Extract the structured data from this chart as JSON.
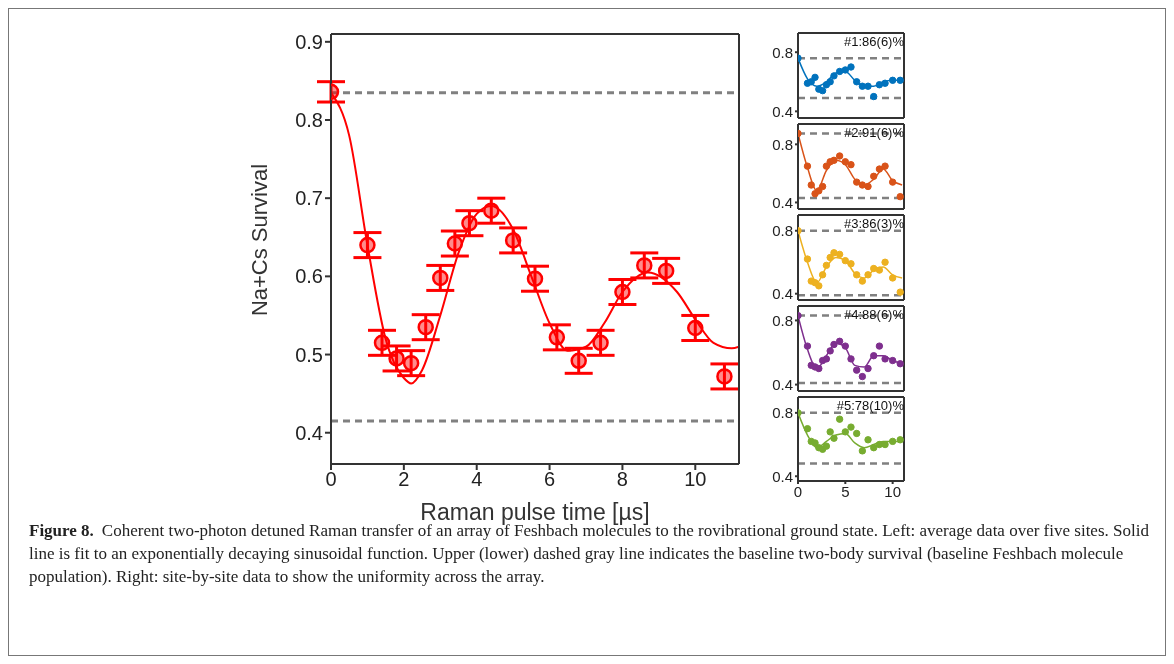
{
  "chart_data": [
    {
      "type": "scatter",
      "xlabel": "Raman pulse time [µs]",
      "ylabel": "Na+Cs Survival",
      "xlim": [
        0,
        11.2
      ],
      "ylim": [
        0.36,
        0.91
      ],
      "xticks": [
        0,
        2,
        4,
        6,
        8,
        10
      ],
      "yticks": [
        0.4,
        0.5,
        0.6,
        0.7,
        0.8,
        0.9
      ],
      "series": [
        {
          "marker": "circle",
          "color": "#ff0000",
          "x": [
            0,
            1,
            1.4,
            1.8,
            2.2,
            2.6,
            3,
            3.4,
            3.8,
            4.4,
            5,
            5.6,
            6.2,
            6.8,
            7.4,
            8,
            8.6,
            9.2,
            10,
            10.8
          ],
          "values": [
            0.836,
            0.64,
            0.515,
            0.495,
            0.489,
            0.535,
            0.598,
            0.642,
            0.668,
            0.684,
            0.646,
            0.597,
            0.522,
            0.492,
            0.515,
            0.58,
            0.614,
            0.607,
            0.534,
            0.472
          ],
          "errors": [
            0.013,
            0.016,
            0.016,
            0.016,
            0.016,
            0.016,
            0.016,
            0.016,
            0.016,
            0.016,
            0.016,
            0.016,
            0.016,
            0.016,
            0.016,
            0.016,
            0.016,
            0.016,
            0.016,
            0.016
          ]
        },
        {
          "type": "line",
          "color": "#ff0000",
          "x": [
            0,
            0.5,
            1,
            1.5,
            2,
            2.2,
            2.5,
            3,
            3.5,
            4,
            4.4,
            5,
            5.5,
            6,
            6.5,
            7,
            7.5,
            8,
            8.7,
            9.5,
            10,
            10.5,
            11,
            11.2
          ],
          "values": [
            0.835,
            0.78,
            0.64,
            0.52,
            0.47,
            0.463,
            0.48,
            0.55,
            0.63,
            0.68,
            0.69,
            0.66,
            0.6,
            0.54,
            0.505,
            0.51,
            0.54,
            0.58,
            0.605,
            0.58,
            0.545,
            0.515,
            0.508,
            0.51
          ]
        }
      ],
      "ref_lines": [
        {
          "axis": "y",
          "value": 0.835,
          "color": "#808080",
          "line_style": "dashed"
        },
        {
          "axis": "y",
          "value": 0.415,
          "color": "#808080",
          "line_style": "dashed"
        }
      ],
      "annotations": [
        "Figure 8.",
        "Coherent two-photon detuned Raman transfer of an array of Feshbach molecules to the rovibrational ground state. Left: average data over five sites. Solid line is fit to an exponentially decaying sinusoidal function. Upper (lower) dashed gray line indicates the baseline two-body survival (baseline Feshbach molecule population). Right: site-by-site data to show the uniformity across the array."
      ]
    },
    {
      "type": "scatter",
      "xlim": [
        0,
        11.2
      ],
      "ylim": [
        0.355,
        0.93
      ],
      "xticks": [
        0,
        5,
        10
      ],
      "yticks": [
        0.4,
        0.8
      ],
      "tick_labels": "y",
      "annotations": [
        "#1:86(6)%"
      ],
      "series": [
        {
          "marker": "circle",
          "color": "#0072bd",
          "x": [
            0,
            1,
            1.4,
            1.8,
            2.2,
            2.6,
            3,
            3.4,
            3.8,
            4.4,
            5,
            5.6,
            6.2,
            6.8,
            7.4,
            8,
            8.6,
            9.2,
            10,
            10.8
          ],
          "values": [
            0.76,
            0.59,
            0.6,
            0.63,
            0.55,
            0.54,
            0.58,
            0.6,
            0.64,
            0.67,
            0.68,
            0.7,
            0.6,
            0.57,
            0.57,
            0.5,
            0.58,
            0.59,
            0.61,
            0.61
          ]
        },
        {
          "type": "line",
          "color": "#0072bd",
          "x": [
            0,
            1,
            2,
            3,
            4,
            5,
            6,
            7,
            8,
            9,
            10,
            11
          ],
          "values": [
            0.76,
            0.62,
            0.57,
            0.6,
            0.66,
            0.67,
            0.61,
            0.57,
            0.57,
            0.6,
            0.61,
            0.61
          ]
        }
      ],
      "ref_lines": [
        {
          "axis": "y",
          "value": 0.76,
          "color": "#808080",
          "line_style": "dashed"
        },
        {
          "axis": "y",
          "value": 0.49,
          "color": "#808080",
          "line_style": "dashed"
        }
      ]
    },
    {
      "type": "scatter",
      "xlim": [
        0,
        11.2
      ],
      "ylim": [
        0.355,
        0.94
      ],
      "xticks": [
        0,
        5,
        10
      ],
      "yticks": [
        0.4,
        0.8
      ],
      "tick_labels": "y",
      "annotations": [
        "#2:91(6)%"
      ],
      "series": [
        {
          "marker": "circle",
          "color": "#d95319",
          "x": [
            0,
            1,
            1.4,
            1.8,
            2.2,
            2.6,
            3,
            3.4,
            3.8,
            4.4,
            5,
            5.6,
            6.2,
            6.8,
            7.4,
            8,
            8.6,
            9.2,
            10,
            10.8
          ],
          "values": [
            0.875,
            0.65,
            0.52,
            0.46,
            0.48,
            0.51,
            0.65,
            0.68,
            0.69,
            0.72,
            0.68,
            0.66,
            0.54,
            0.52,
            0.51,
            0.58,
            0.63,
            0.65,
            0.54,
            0.44
          ]
        },
        {
          "type": "line",
          "color": "#d95319",
          "x": [
            0,
            1,
            2,
            3,
            4,
            5,
            6,
            7,
            8,
            9,
            10,
            11
          ],
          "values": [
            0.875,
            0.64,
            0.48,
            0.62,
            0.69,
            0.66,
            0.56,
            0.52,
            0.56,
            0.63,
            0.55,
            0.52
          ]
        }
      ],
      "ref_lines": [
        {
          "axis": "y",
          "value": 0.875,
          "color": "#808080",
          "line_style": "dashed"
        },
        {
          "axis": "y",
          "value": 0.43,
          "color": "#808080",
          "line_style": "dashed"
        }
      ]
    },
    {
      "type": "scatter",
      "xlim": [
        0,
        11.2
      ],
      "ylim": [
        0.36,
        0.9
      ],
      "xticks": [
        0,
        5,
        10
      ],
      "yticks": [
        0.4,
        0.8
      ],
      "tick_labels": "y",
      "annotations": [
        "#3:86(3)%"
      ],
      "series": [
        {
          "marker": "circle",
          "color": "#edb120",
          "x": [
            0,
            1,
            1.4,
            1.8,
            2.2,
            2.6,
            3,
            3.4,
            3.8,
            4.4,
            5,
            5.6,
            6.2,
            6.8,
            7.4,
            8,
            8.6,
            9.2,
            10,
            10.8
          ],
          "values": [
            0.8,
            0.62,
            0.48,
            0.47,
            0.45,
            0.52,
            0.58,
            0.63,
            0.66,
            0.65,
            0.61,
            0.59,
            0.52,
            0.48,
            0.52,
            0.56,
            0.55,
            0.6,
            0.5,
            0.41
          ]
        },
        {
          "type": "line",
          "color": "#edb120",
          "x": [
            0,
            1,
            2,
            3,
            4,
            5,
            6,
            7,
            8,
            9,
            10,
            11
          ],
          "values": [
            0.8,
            0.6,
            0.47,
            0.57,
            0.63,
            0.61,
            0.53,
            0.5,
            0.55,
            0.57,
            0.52,
            0.5
          ]
        }
      ],
      "ref_lines": [
        {
          "axis": "y",
          "value": 0.8,
          "color": "#808080",
          "line_style": "dashed"
        },
        {
          "axis": "y",
          "value": 0.39,
          "color": "#808080",
          "line_style": "dashed"
        }
      ]
    },
    {
      "type": "scatter",
      "xlim": [
        0,
        11.2
      ],
      "ylim": [
        0.36,
        0.89
      ],
      "xticks": [
        0,
        5,
        10
      ],
      "yticks": [
        0.4,
        0.8
      ],
      "tick_labels": "y",
      "annotations": [
        "#4:88(6)%"
      ],
      "series": [
        {
          "marker": "circle",
          "color": "#7e2f8e",
          "x": [
            0,
            1,
            1.4,
            1.8,
            2.2,
            2.6,
            3,
            3.4,
            3.8,
            4.4,
            5,
            5.6,
            6.2,
            6.8,
            7.4,
            8,
            8.6,
            9.2,
            10,
            10.8
          ],
          "values": [
            0.83,
            0.64,
            0.52,
            0.51,
            0.5,
            0.55,
            0.56,
            0.61,
            0.65,
            0.67,
            0.64,
            0.56,
            0.49,
            0.45,
            0.5,
            0.58,
            0.64,
            0.56,
            0.55,
            0.53
          ]
        },
        {
          "type": "line",
          "color": "#7e2f8e",
          "x": [
            0,
            1,
            2,
            3,
            4,
            5,
            6,
            7,
            8,
            9,
            10,
            11
          ],
          "values": [
            0.83,
            0.62,
            0.5,
            0.58,
            0.66,
            0.63,
            0.52,
            0.51,
            0.58,
            0.58,
            0.55,
            0.53
          ]
        }
      ],
      "ref_lines": [
        {
          "axis": "y",
          "value": 0.83,
          "color": "#808080",
          "line_style": "dashed"
        },
        {
          "axis": "y",
          "value": 0.41,
          "color": "#808080",
          "line_style": "dashed"
        }
      ]
    },
    {
      "type": "scatter",
      "xlim": [
        0,
        11.2
      ],
      "ylim": [
        0.37,
        0.9
      ],
      "xticks": [
        0,
        5,
        10
      ],
      "yticks": [
        0.4,
        0.8
      ],
      "annotations": [
        "#5:78(10)%"
      ],
      "series": [
        {
          "marker": "circle",
          "color": "#77ac30",
          "x": [
            0,
            1,
            1.4,
            1.8,
            2.2,
            2.6,
            3,
            3.4,
            3.8,
            4.4,
            5,
            5.6,
            6.2,
            6.8,
            7.4,
            8,
            8.6,
            9.2,
            10,
            10.8
          ],
          "values": [
            0.8,
            0.7,
            0.62,
            0.61,
            0.58,
            0.57,
            0.59,
            0.68,
            0.64,
            0.76,
            0.68,
            0.71,
            0.67,
            0.56,
            0.63,
            0.58,
            0.6,
            0.6,
            0.62,
            0.63
          ]
        },
        {
          "type": "line",
          "color": "#77ac30",
          "x": [
            0,
            1,
            2,
            3,
            4,
            5,
            6,
            7,
            8,
            9,
            10,
            11
          ],
          "values": [
            0.8,
            0.66,
            0.58,
            0.62,
            0.66,
            0.67,
            0.61,
            0.58,
            0.6,
            0.62,
            0.62,
            0.62
          ]
        }
      ],
      "ref_lines": [
        {
          "axis": "y",
          "value": 0.8,
          "color": "#808080",
          "line_style": "dashed"
        },
        {
          "axis": "y",
          "value": 0.48,
          "color": "#808080",
          "line_style": "dashed"
        }
      ]
    }
  ]
}
